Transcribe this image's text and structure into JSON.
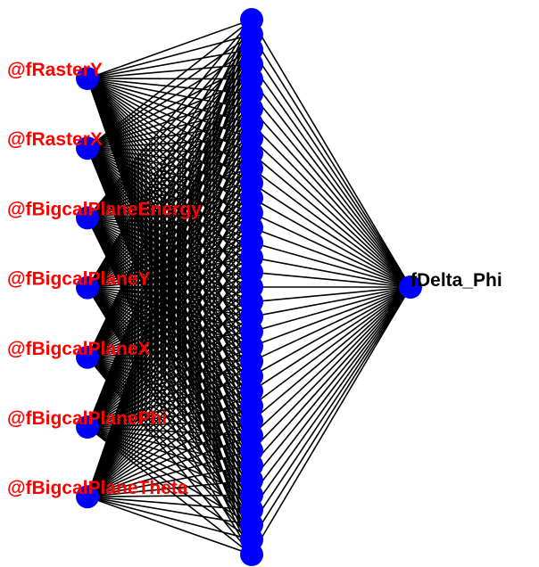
{
  "network": {
    "inputs": [
      "@fRasterY",
      "@fRasterX",
      "@fBigcalPlaneEnergy",
      "@fBigcalPlaneY",
      "@fBigcalPlaneX",
      "@fBigcalPlanePhi",
      "@fBigcalPlaneTheta"
    ],
    "hidden_neurons": 37,
    "output": "fDelta_Phi"
  },
  "colors": {
    "node": "#0000ff",
    "input_label": "#ff0000",
    "output_label": "#000000",
    "connection": "#000000",
    "background": "#ffffff"
  }
}
